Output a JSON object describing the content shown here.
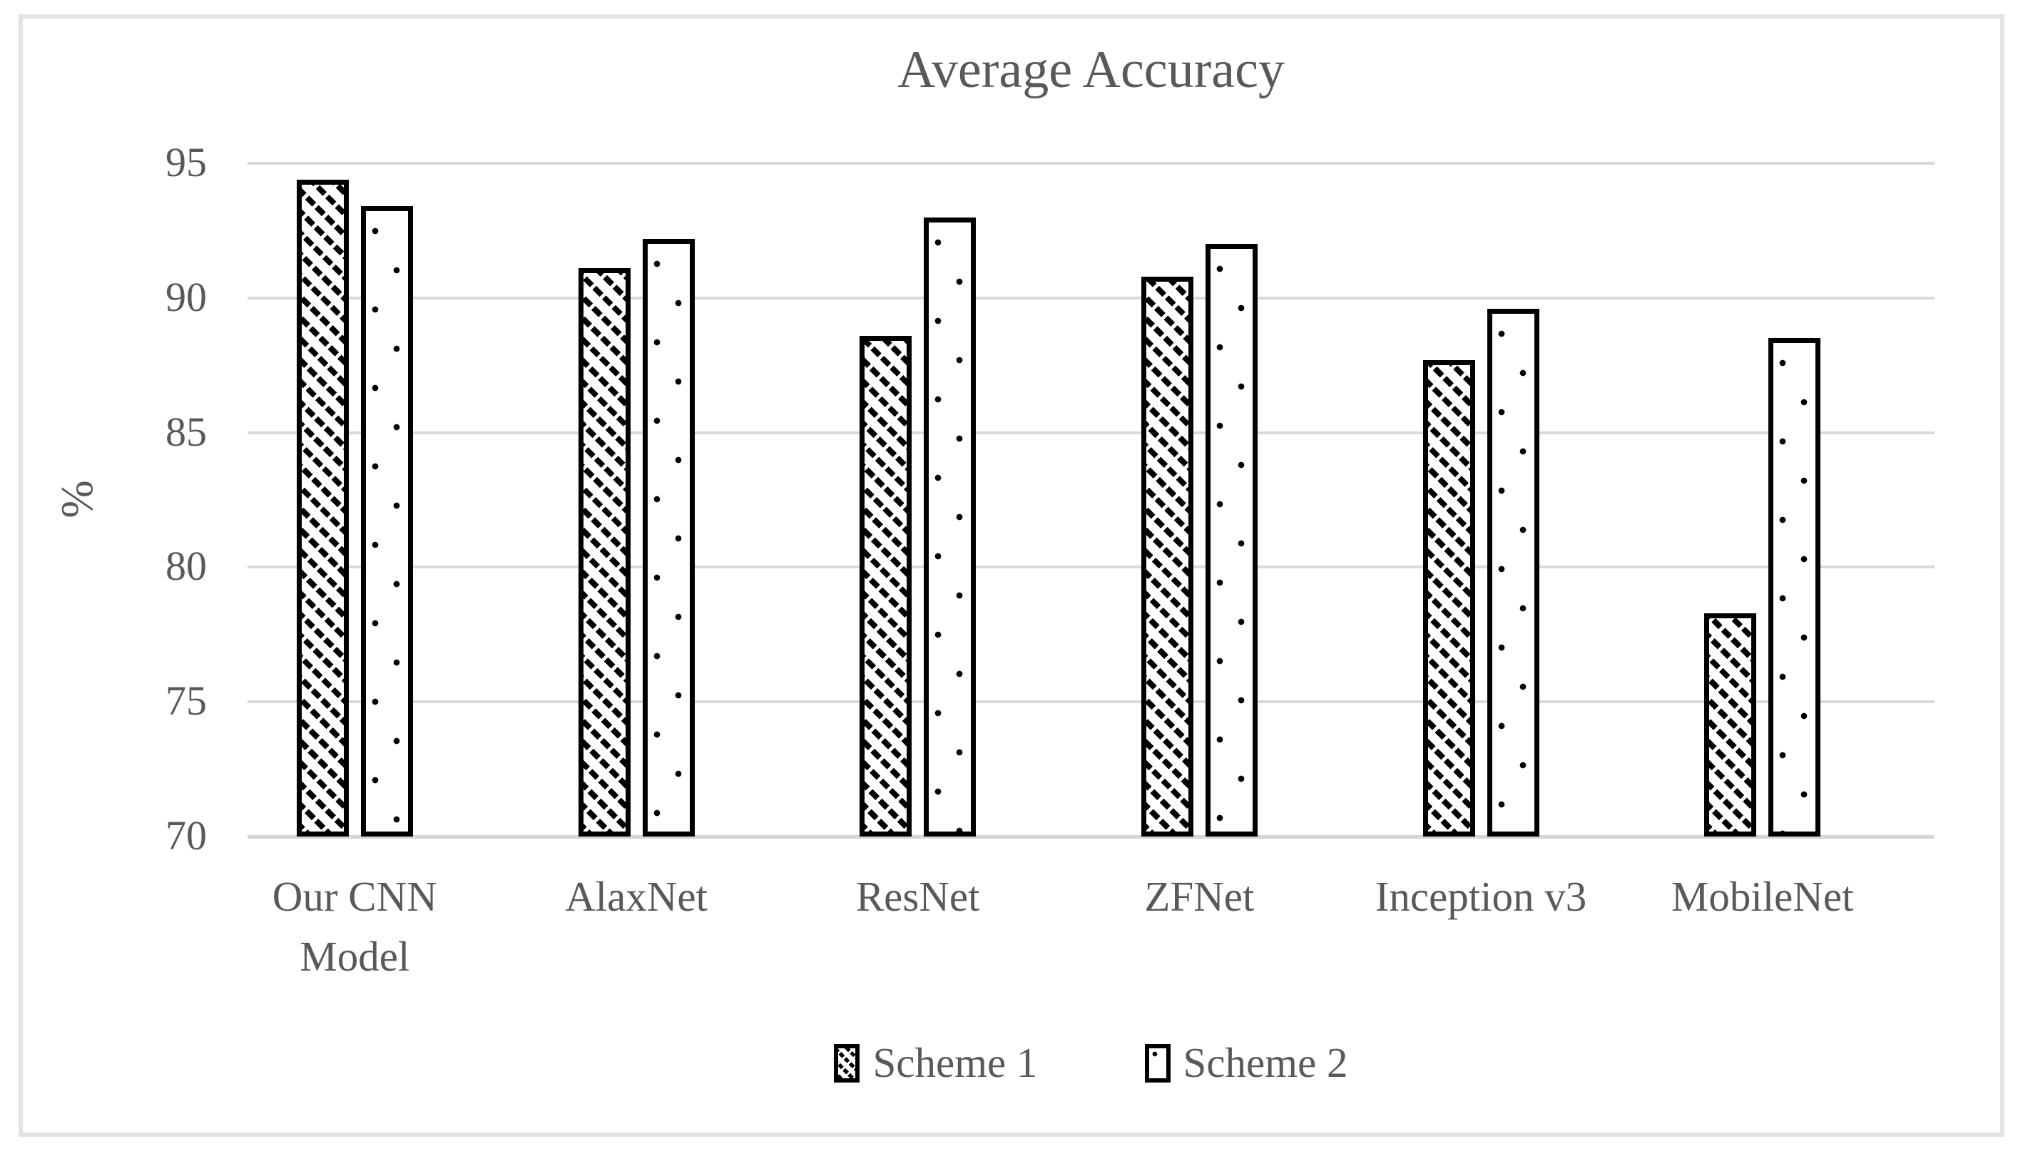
{
  "chart_data": {
    "type": "bar",
    "title": "Average Accuracy",
    "ylabel": "%",
    "ylim": [
      70,
      95
    ],
    "yticks": [
      95,
      90,
      85,
      80,
      75,
      70
    ],
    "grid": true,
    "legend_position": "bottom",
    "categories": [
      "Our CNN Model",
      "AlaxNet",
      "ResNet",
      "ZFNet",
      "Inception v3",
      "MobileNet"
    ],
    "series": [
      {
        "name": "Scheme 1",
        "pattern": "diagonal-hatch",
        "values": [
          94.4,
          91.1,
          88.6,
          90.8,
          87.7,
          78.3
        ]
      },
      {
        "name": "Scheme 2",
        "pattern": "dots",
        "values": [
          93.4,
          92.2,
          93.0,
          92.0,
          89.6,
          88.5
        ]
      }
    ],
    "colors": {
      "bar_fill": "#ffffff",
      "bar_border": "#000000",
      "gridline": "#d9d9d9",
      "text": "#595959",
      "frame_border": "#e3e3e3"
    }
  }
}
